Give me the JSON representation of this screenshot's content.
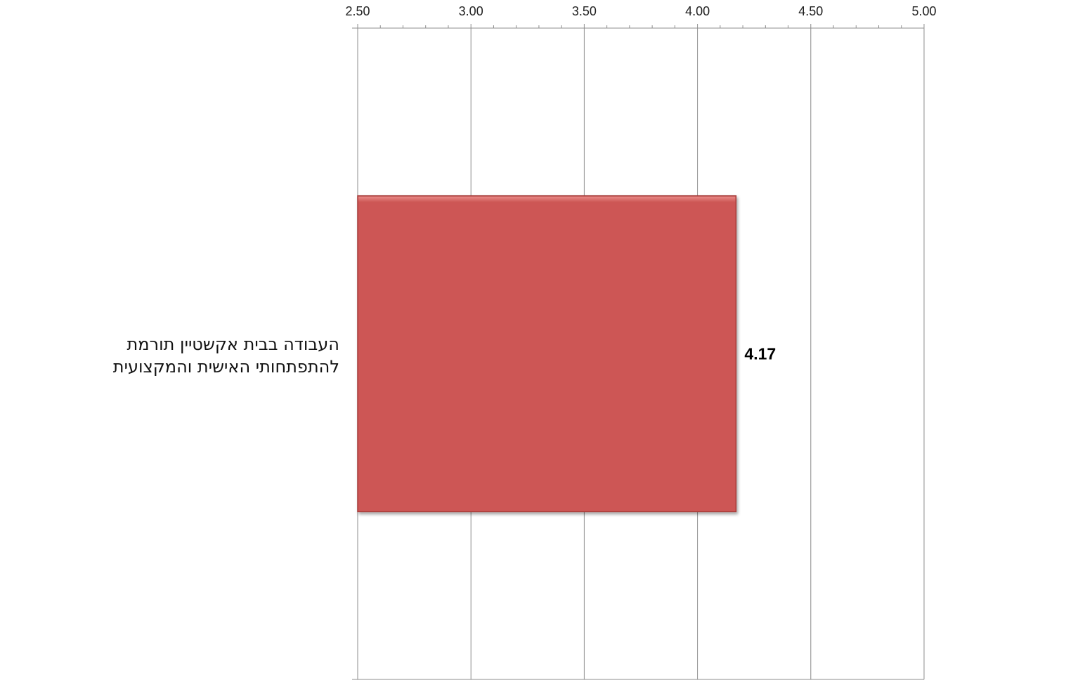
{
  "chart_data": {
    "type": "bar",
    "orientation": "horizontal",
    "categories": [
      "העבודה בבית אקשטיין תורמת להתפתחותי האישית והמקצועית"
    ],
    "values": [
      4.17
    ],
    "value_labels": [
      "4.17"
    ],
    "title": "",
    "xlabel": "",
    "ylabel": "",
    "xlim": [
      2.5,
      5.0
    ],
    "x_ticks": [
      "2.50",
      "3.00",
      "3.50",
      "4.00",
      "4.50",
      "5.00"
    ],
    "x_axis_position": "top",
    "grid": true,
    "legend": "none",
    "colors": {
      "bar": "#cd5755",
      "bar_edge": "#a53b38",
      "grid": "#8c8c8c"
    }
  }
}
